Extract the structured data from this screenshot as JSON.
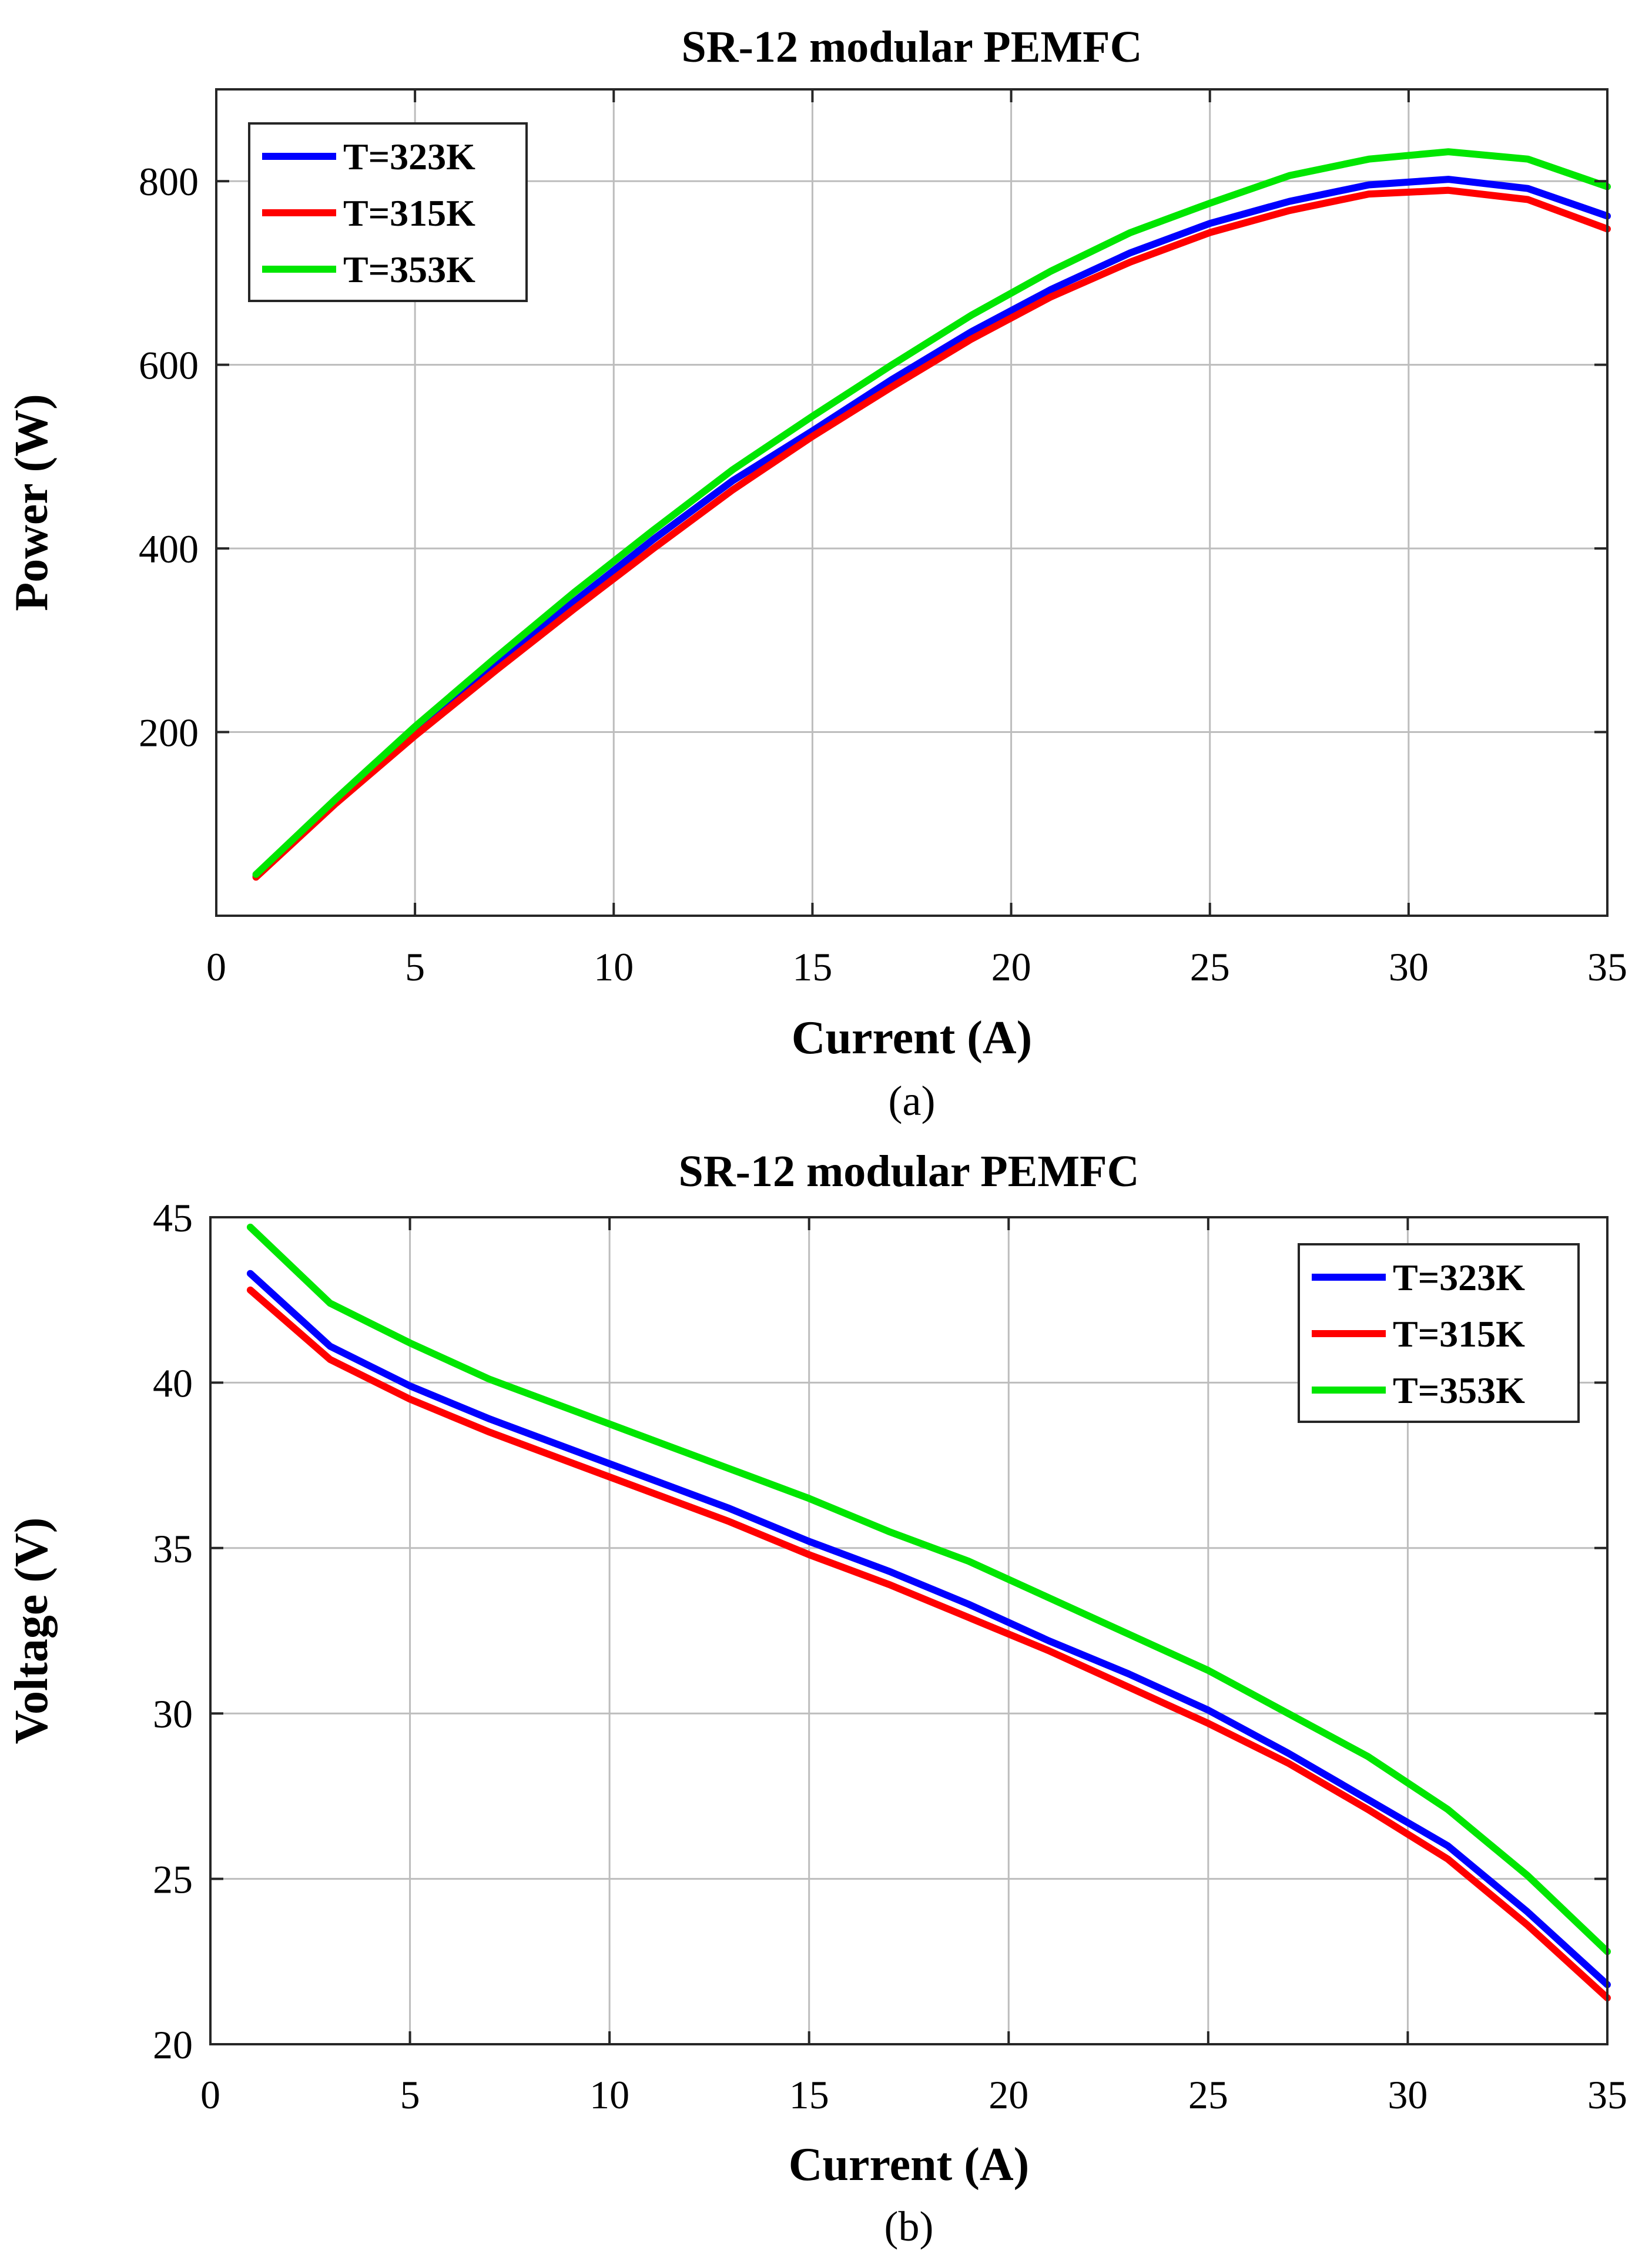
{
  "chart_data": [
    {
      "type": "line",
      "title": "SR-12 modular PEMFC",
      "xlabel": "Current (A)",
      "ylabel": "Power (W)",
      "caption": "(a)",
      "xlim": [
        0,
        35
      ],
      "ylim": [
        0,
        900
      ],
      "xticks": [
        0,
        5,
        10,
        15,
        20,
        25,
        30,
        35
      ],
      "yticks": [
        200,
        400,
        600,
        800
      ],
      "grid": true,
      "legend_position": "top-left",
      "x": [
        1,
        3,
        5,
        7,
        9,
        11,
        13,
        15,
        17,
        19,
        21,
        23,
        25,
        27,
        29,
        31,
        33,
        35
      ],
      "series": [
        {
          "name": "T=323K",
          "color": "#0000ff",
          "values": [
            43,
            124,
            200,
            272,
            342,
            410,
            474,
            528,
            584,
            636,
            682,
            722,
            754,
            778,
            796,
            802,
            792,
            762
          ]
        },
        {
          "name": "T=315K",
          "color": "#ff0000",
          "values": [
            42,
            122,
            196,
            266,
            334,
            400,
            464,
            522,
            576,
            628,
            674,
            712,
            744,
            768,
            786,
            790,
            780,
            748
          ]
        },
        {
          "name": "T=353K",
          "color": "#00e600",
          "values": [
            45,
            127,
            206,
            280,
            352,
            420,
            486,
            544,
            600,
            654,
            702,
            744,
            776,
            806,
            824,
            832,
            824,
            794
          ]
        }
      ]
    },
    {
      "type": "line",
      "title": "SR-12 modular PEMFC",
      "xlabel": "Current (A)",
      "ylabel": "Voltage (V)",
      "caption": "(b)",
      "xlim": [
        0,
        35
      ],
      "ylim": [
        20,
        45
      ],
      "xticks": [
        0,
        5,
        10,
        15,
        20,
        25,
        30,
        35
      ],
      "yticks": [
        20,
        25,
        30,
        35,
        40,
        45
      ],
      "grid": true,
      "legend_position": "top-right",
      "x": [
        1,
        3,
        5,
        7,
        9,
        11,
        13,
        15,
        17,
        19,
        21,
        23,
        25,
        27,
        29,
        31,
        33,
        35
      ],
      "series": [
        {
          "name": "T=323K",
          "color": "#0000ff",
          "values": [
            43.3,
            41.1,
            39.9,
            38.9,
            38.0,
            37.1,
            36.2,
            35.2,
            34.3,
            33.3,
            32.2,
            31.2,
            30.1,
            28.8,
            27.4,
            26.0,
            24.0,
            21.8
          ]
        },
        {
          "name": "T=315K",
          "color": "#ff0000",
          "values": [
            42.8,
            40.7,
            39.5,
            38.5,
            37.6,
            36.7,
            35.8,
            34.8,
            33.9,
            32.9,
            31.9,
            30.8,
            29.7,
            28.5,
            27.1,
            25.6,
            23.6,
            21.4
          ]
        },
        {
          "name": "T=353K",
          "color": "#00e600",
          "values": [
            44.7,
            42.4,
            41.2,
            40.1,
            39.2,
            38.3,
            37.4,
            36.5,
            35.5,
            34.6,
            33.5,
            32.4,
            31.3,
            30.0,
            28.7,
            27.1,
            25.1,
            22.8
          ]
        }
      ]
    }
  ]
}
